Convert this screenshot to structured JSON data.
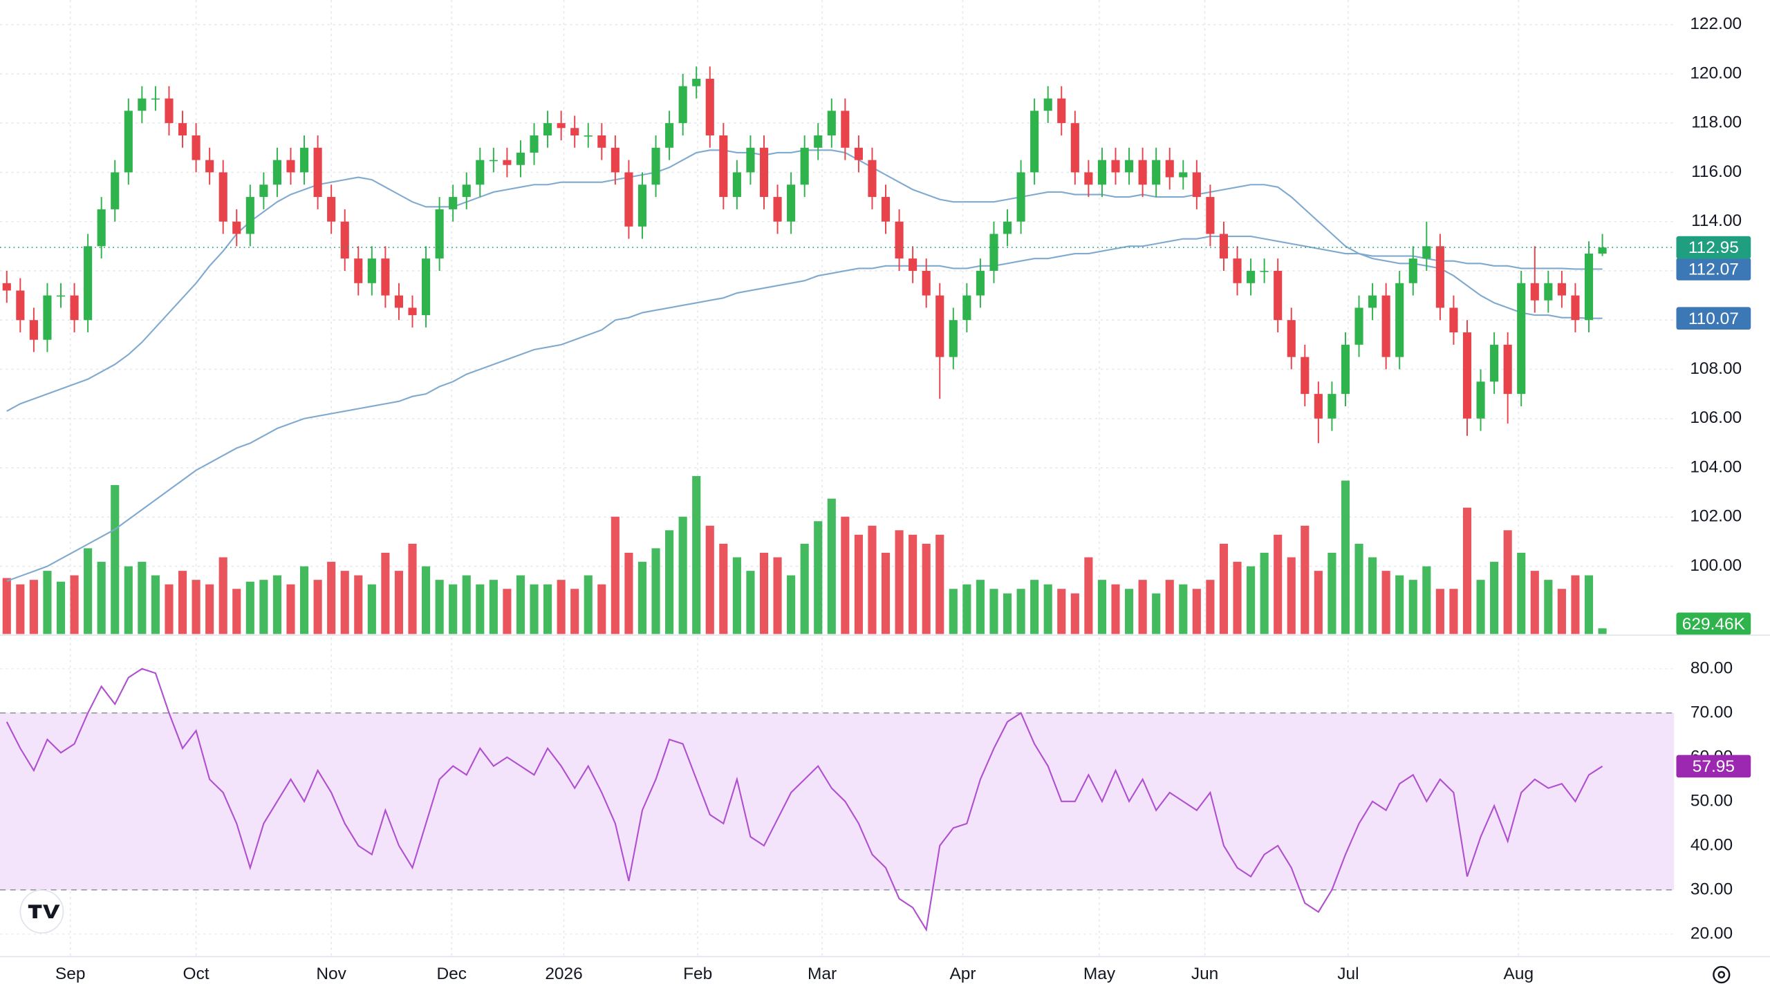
{
  "chart_data": {
    "type": "candlestick",
    "xlim": [
      -0.5,
      123.3
    ],
    "xticks": [
      {
        "value": 4.7,
        "label": "Sep"
      },
      {
        "value": 14,
        "label": "Oct"
      },
      {
        "value": 24,
        "label": "Nov"
      },
      {
        "value": 32.9,
        "label": "Dec"
      },
      {
        "value": 41.2,
        "label": "2026"
      },
      {
        "value": 51.1,
        "label": "Feb"
      },
      {
        "value": 60.3,
        "label": "Mar"
      },
      {
        "value": 70.7,
        "label": "Apr"
      },
      {
        "value": 80.8,
        "label": "May"
      },
      {
        "value": 88.6,
        "label": "Jun"
      },
      {
        "value": 99.2,
        "label": "Jul"
      },
      {
        "value": 111.8,
        "label": "Aug"
      }
    ],
    "ylim": [
      97.25,
      123.0
    ],
    "yticks": [
      {
        "value": 100,
        "label": "100.00"
      },
      {
        "value": 102,
        "label": "102.00"
      },
      {
        "value": 104,
        "label": "104.00"
      },
      {
        "value": 106,
        "label": "106.00"
      },
      {
        "value": 108,
        "label": "108.00"
      },
      {
        "value": 110,
        "label": "110.00"
      },
      {
        "value": 112,
        "label": "112.00"
      },
      {
        "value": 114,
        "label": "114.00"
      },
      {
        "value": 116,
        "label": "116.00"
      },
      {
        "value": 118,
        "label": "118.00"
      },
      {
        "value": 120,
        "label": "120.00"
      },
      {
        "value": 122,
        "label": "122.00"
      }
    ],
    "grid": true,
    "up_color": "#2fb34c",
    "down_color": "#e8424b",
    "last_color": "#1f9e80",
    "open": [
      111.5,
      111.2,
      110.0,
      109.2,
      111.0,
      111.0,
      110.0,
      113.0,
      114.5,
      116.0,
      118.5,
      119.0,
      119.0,
      118.0,
      117.5,
      116.5,
      116.0,
      114.0,
      113.5,
      115.0,
      115.5,
      116.5,
      116.0,
      117.0,
      115.0,
      114.0,
      112.5,
      111.5,
      112.5,
      111.0,
      110.5,
      110.2,
      112.5,
      114.5,
      115.0,
      115.5,
      116.5,
      116.5,
      116.3,
      116.8,
      117.5,
      118.0,
      117.8,
      117.5,
      117.5,
      117.0,
      116.0,
      113.8,
      115.5,
      117.0,
      118.0,
      119.5,
      119.8,
      117.5,
      115.0,
      116.0,
      117.0,
      115.0,
      114.0,
      115.5,
      117.0,
      117.5,
      118.5,
      117.0,
      116.5,
      115.0,
      114.0,
      112.5,
      112.0,
      111.0,
      108.5,
      110.0,
      111.0,
      112.0,
      113.5,
      114.0,
      116.0,
      118.5,
      119.0,
      118.0,
      116.0,
      115.5,
      116.5,
      116.0,
      116.5,
      115.5,
      116.5,
      115.8,
      116.0,
      115.0,
      113.5,
      112.5,
      111.5,
      112.0,
      112.0,
      110.0,
      108.5,
      107.0,
      106.0,
      107.0,
      109.0,
      110.5,
      111.0,
      108.5,
      111.5,
      112.5,
      113.0,
      110.5,
      109.5,
      106.0,
      107.5,
      109.0,
      107.0,
      111.5,
      110.8,
      111.5,
      111.0,
      110.0,
      112.7
    ],
    "high": [
      112.0,
      111.7,
      110.5,
      111.5,
      111.5,
      111.5,
      113.5,
      115.0,
      116.5,
      119.0,
      119.5,
      119.5,
      119.5,
      118.5,
      118.0,
      117.0,
      116.5,
      114.5,
      115.5,
      116.0,
      117.0,
      117.0,
      117.5,
      117.5,
      115.5,
      114.5,
      113.0,
      113.0,
      113.0,
      111.5,
      111.0,
      113.0,
      115.0,
      115.5,
      116.0,
      117.0,
      117.0,
      117.0,
      117.3,
      118.0,
      118.5,
      118.5,
      118.3,
      118.0,
      118.0,
      117.5,
      116.5,
      116.0,
      117.5,
      118.5,
      120.0,
      120.3,
      120.3,
      118.0,
      116.5,
      117.5,
      117.5,
      115.5,
      116.0,
      117.5,
      118.0,
      119.0,
      119.0,
      117.5,
      117.0,
      115.5,
      114.5,
      113.0,
      112.5,
      111.5,
      110.5,
      111.5,
      112.5,
      114.0,
      114.5,
      116.5,
      119.0,
      119.5,
      119.5,
      118.5,
      116.5,
      117.0,
      117.0,
      117.0,
      117.0,
      117.0,
      117.0,
      116.5,
      116.5,
      115.5,
      114.0,
      113.0,
      112.5,
      112.5,
      112.5,
      110.5,
      109.0,
      107.5,
      107.5,
      109.5,
      111.0,
      111.5,
      111.5,
      112.0,
      113.0,
      114.0,
      113.5,
      111.0,
      110.0,
      108.0,
      109.5,
      109.5,
      112.0,
      113.0,
      112.0,
      112.0,
      111.5,
      113.2,
      113.5
    ],
    "low": [
      110.7,
      109.5,
      108.7,
      108.7,
      110.5,
      109.5,
      109.5,
      112.5,
      114.0,
      115.5,
      118.0,
      118.5,
      117.5,
      117.0,
      116.0,
      115.5,
      113.5,
      113.0,
      113.0,
      114.5,
      115.0,
      115.5,
      115.5,
      114.5,
      113.5,
      112.0,
      111.0,
      111.0,
      110.5,
      110.0,
      109.7,
      109.7,
      112.0,
      114.0,
      114.5,
      115.0,
      116.0,
      115.8,
      115.8,
      116.3,
      117.0,
      117.3,
      117.0,
      117.0,
      116.5,
      115.5,
      113.3,
      113.3,
      115.0,
      116.5,
      117.5,
      119.0,
      117.0,
      114.5,
      114.5,
      115.5,
      114.5,
      113.5,
      113.5,
      115.0,
      116.5,
      117.0,
      116.5,
      116.0,
      114.5,
      113.5,
      112.0,
      111.5,
      110.5,
      106.8,
      108.0,
      109.5,
      110.5,
      111.5,
      113.0,
      113.5,
      115.5,
      118.0,
      117.5,
      115.5,
      115.0,
      115.0,
      115.5,
      115.5,
      115.0,
      115.0,
      115.3,
      115.3,
      114.5,
      113.0,
      112.0,
      111.0,
      111.0,
      111.5,
      109.5,
      108.0,
      106.5,
      105.0,
      105.5,
      106.5,
      108.5,
      110.0,
      108.0,
      108.0,
      111.0,
      112.0,
      110.0,
      109.0,
      105.3,
      105.5,
      107.0,
      105.8,
      106.5,
      110.3,
      110.3,
      110.5,
      109.5,
      109.5,
      112.6
    ],
    "close": [
      111.2,
      110.0,
      109.2,
      111.0,
      111.0,
      110.0,
      113.0,
      114.5,
      116.0,
      118.5,
      119.0,
      119.0,
      118.0,
      117.5,
      116.5,
      116.0,
      114.0,
      113.5,
      115.0,
      115.5,
      116.5,
      116.0,
      117.0,
      115.0,
      114.0,
      112.5,
      111.5,
      112.5,
      111.0,
      110.5,
      110.2,
      112.5,
      114.5,
      115.0,
      115.5,
      116.5,
      116.5,
      116.3,
      116.8,
      117.5,
      118.0,
      117.8,
      117.5,
      117.5,
      117.0,
      116.0,
      113.8,
      115.5,
      117.0,
      118.0,
      119.5,
      119.8,
      117.5,
      115.0,
      116.0,
      117.0,
      115.0,
      114.0,
      115.5,
      117.0,
      117.5,
      118.5,
      117.0,
      116.5,
      115.0,
      114.0,
      112.5,
      112.0,
      111.0,
      108.5,
      110.0,
      111.0,
      112.0,
      113.5,
      114.0,
      116.0,
      118.5,
      119.0,
      118.0,
      116.0,
      115.5,
      116.5,
      116.0,
      116.5,
      115.5,
      116.5,
      115.8,
      116.0,
      115.0,
      113.5,
      112.5,
      111.5,
      112.0,
      112.0,
      110.0,
      108.5,
      107.0,
      106.0,
      107.0,
      109.0,
      110.5,
      111.0,
      108.5,
      111.5,
      112.5,
      113.0,
      110.5,
      109.5,
      106.0,
      107.5,
      109.0,
      107.0,
      111.5,
      110.8,
      111.5,
      111.0,
      110.0,
      112.7,
      112.95
    ],
    "volume": {
      "ylim": [
        0,
        20000000
      ],
      "values": [
        6200000,
        5500000,
        6000000,
        7000000,
        5800000,
        6500000,
        9500000,
        8000000,
        16500000,
        7500000,
        8000000,
        6500000,
        5500000,
        7000000,
        6000000,
        5500000,
        8500000,
        5000000,
        5800000,
        6000000,
        6500000,
        5500000,
        7500000,
        6000000,
        8000000,
        7000000,
        6500000,
        5500000,
        9000000,
        7000000,
        10000000,
        7500000,
        6000000,
        5500000,
        6500000,
        5500000,
        6000000,
        5000000,
        6500000,
        5500000,
        5500000,
        6000000,
        5000000,
        6500000,
        5500000,
        13000000,
        9000000,
        8000000,
        9500000,
        11500000,
        13000000,
        17500000,
        12000000,
        10000000,
        8500000,
        7000000,
        9000000,
        8500000,
        6500000,
        10000000,
        12500000,
        15000000,
        13000000,
        11000000,
        12000000,
        9000000,
        11500000,
        11000000,
        10000000,
        11000000,
        5000000,
        5500000,
        6000000,
        5000000,
        4500000,
        5000000,
        6000000,
        5500000,
        5000000,
        4500000,
        8500000,
        6000000,
        5500000,
        5000000,
        6000000,
        4500000,
        6000000,
        5500000,
        5000000,
        6000000,
        10000000,
        8000000,
        7500000,
        9000000,
        11000000,
        8500000,
        12000000,
        7000000,
        9000000,
        17000000,
        10000000,
        8500000,
        7000000,
        6500000,
        6000000,
        7500000,
        5000000,
        5000000,
        14000000,
        6000000,
        8000000,
        11500000,
        9000000,
        7000000,
        6000000,
        5000000,
        6500000,
        6500000,
        629460
      ],
      "value_labels": [
        null,
        null,
        null,
        null,
        null,
        null,
        null,
        null,
        null,
        null,
        null,
        null,
        null,
        null,
        null,
        null,
        null,
        null,
        null,
        null,
        null,
        null,
        null,
        null,
        null,
        null,
        null,
        null,
        null,
        null,
        null,
        null,
        null,
        null,
        null,
        null,
        null,
        null,
        null,
        null,
        null,
        null,
        null,
        null,
        null,
        null,
        null,
        null,
        null,
        null,
        null,
        null,
        null,
        null,
        null,
        null,
        null,
        null,
        null,
        null,
        null,
        null,
        null,
        null,
        null,
        null,
        null,
        null,
        null,
        null,
        null,
        null,
        null,
        null,
        null,
        null,
        null,
        null,
        null,
        null,
        null,
        null,
        null,
        null,
        null,
        null,
        null,
        null,
        null,
        null,
        null,
        null,
        null,
        null,
        null,
        null,
        null,
        null,
        null,
        null,
        null,
        null,
        null,
        null,
        null,
        null,
        null,
        null,
        null,
        null,
        null,
        null,
        null,
        null,
        null,
        null,
        null,
        null,
        "629.46K"
      ]
    },
    "moving_averages": [
      {
        "color": "#7fa9cf",
        "label_color": "#3b78b5",
        "values": [
          106.3,
          106.6,
          106.8,
          107.0,
          107.2,
          107.4,
          107.6,
          107.9,
          108.2,
          108.6,
          109.1,
          109.7,
          110.3,
          110.9,
          111.5,
          112.2,
          112.8,
          113.5,
          114.0,
          114.4,
          114.8,
          115.1,
          115.3,
          115.5,
          115.6,
          115.7,
          115.8,
          115.7,
          115.4,
          115.1,
          114.8,
          114.6,
          114.6,
          114.6,
          114.8,
          115.0,
          115.2,
          115.3,
          115.4,
          115.5,
          115.5,
          115.6,
          115.6,
          115.6,
          115.6,
          115.7,
          115.8,
          115.9,
          116.0,
          116.2,
          116.5,
          116.8,
          116.9,
          116.9,
          116.8,
          116.8,
          116.7,
          116.8,
          116.8,
          116.9,
          116.9,
          116.9,
          116.8,
          116.5,
          116.2,
          115.9,
          115.6,
          115.3,
          115.1,
          114.9,
          114.8,
          114.8,
          114.8,
          114.8,
          114.9,
          115.0,
          115.1,
          115.2,
          115.2,
          115.1,
          115.1,
          115.1,
          115.0,
          115.0,
          115.1,
          115.0,
          115.0,
          115.0,
          115.1,
          115.2,
          115.3,
          115.4,
          115.5,
          115.5,
          115.4,
          115.0,
          114.5,
          114.0,
          113.5,
          113.0,
          112.7,
          112.5,
          112.4,
          112.3,
          112.3,
          112.2,
          112.1,
          111.8,
          111.4,
          111.0,
          110.7,
          110.5,
          110.3,
          110.2,
          110.2,
          110.1,
          110.1,
          110.07,
          110.07
        ]
      },
      {
        "color": "#7fa9cf",
        "label_color": "#3b78b5",
        "values": [
          99.4,
          99.6,
          99.8,
          100.0,
          100.3,
          100.6,
          100.9,
          101.2,
          101.5,
          101.9,
          102.3,
          102.7,
          103.1,
          103.5,
          103.9,
          104.2,
          104.5,
          104.8,
          105.0,
          105.3,
          105.6,
          105.8,
          106.0,
          106.1,
          106.2,
          106.3,
          106.4,
          106.5,
          106.6,
          106.7,
          106.9,
          107.0,
          107.3,
          107.5,
          107.8,
          108.0,
          108.2,
          108.4,
          108.6,
          108.8,
          108.9,
          109.0,
          109.2,
          109.4,
          109.6,
          110.0,
          110.1,
          110.3,
          110.4,
          110.5,
          110.6,
          110.7,
          110.8,
          110.9,
          111.1,
          111.2,
          111.3,
          111.4,
          111.5,
          111.6,
          111.8,
          111.9,
          112.0,
          112.1,
          112.1,
          112.2,
          112.2,
          112.2,
          112.2,
          112.2,
          112.1,
          112.1,
          112.2,
          112.2,
          112.3,
          112.4,
          112.5,
          112.5,
          112.6,
          112.7,
          112.7,
          112.8,
          112.9,
          113.0,
          113.0,
          113.1,
          113.2,
          113.3,
          113.3,
          113.4,
          113.4,
          113.4,
          113.4,
          113.3,
          113.2,
          113.1,
          113.0,
          112.9,
          112.8,
          112.7,
          112.7,
          112.6,
          112.6,
          112.6,
          112.6,
          112.5,
          112.4,
          112.4,
          112.3,
          112.3,
          112.2,
          112.2,
          112.1,
          112.1,
          112.1,
          112.1,
          112.07,
          112.07,
          112.07
        ]
      }
    ],
    "rsi": {
      "color": "#b04fd0",
      "label_color": "#9c27b0",
      "band_color": "#f3e4fb",
      "band": [
        30,
        70
      ],
      "ylim": [
        14.9,
        87.6
      ],
      "yticks": [
        {
          "value": 20,
          "label": "20.00"
        },
        {
          "value": 30,
          "label": "30.00"
        },
        {
          "value": 40,
          "label": "40.00"
        },
        {
          "value": 50,
          "label": "50.00"
        },
        {
          "value": 60,
          "label": "60.00"
        },
        {
          "value": 70,
          "label": "70.00"
        },
        {
          "value": 80,
          "label": "80.00"
        }
      ],
      "values": [
        68,
        62,
        57,
        64,
        61,
        63,
        70,
        76,
        72,
        78,
        80,
        79,
        70,
        62,
        66,
        55,
        52,
        45,
        35,
        45,
        50,
        55,
        50,
        57,
        52,
        45,
        40,
        38,
        48,
        40,
        35,
        45,
        55,
        58,
        56,
        62,
        58,
        60,
        58,
        56,
        62,
        58,
        53,
        58,
        52,
        45,
        32,
        48,
        55,
        64,
        63,
        55,
        47,
        45,
        55,
        42,
        40,
        46,
        52,
        55,
        58,
        53,
        50,
        45,
        38,
        35,
        28,
        26,
        21,
        40,
        44,
        45,
        55,
        62,
        68,
        70,
        63,
        58,
        50,
        50,
        56,
        50,
        57,
        50,
        55,
        48,
        52,
        50,
        48,
        52,
        40,
        35,
        33,
        38,
        40,
        35,
        27,
        25,
        30,
        38,
        45,
        50,
        48,
        54,
        56,
        50,
        55,
        52,
        33,
        42,
        49,
        41,
        52,
        55,
        53,
        54,
        50,
        56,
        57.95
      ]
    }
  }
}
